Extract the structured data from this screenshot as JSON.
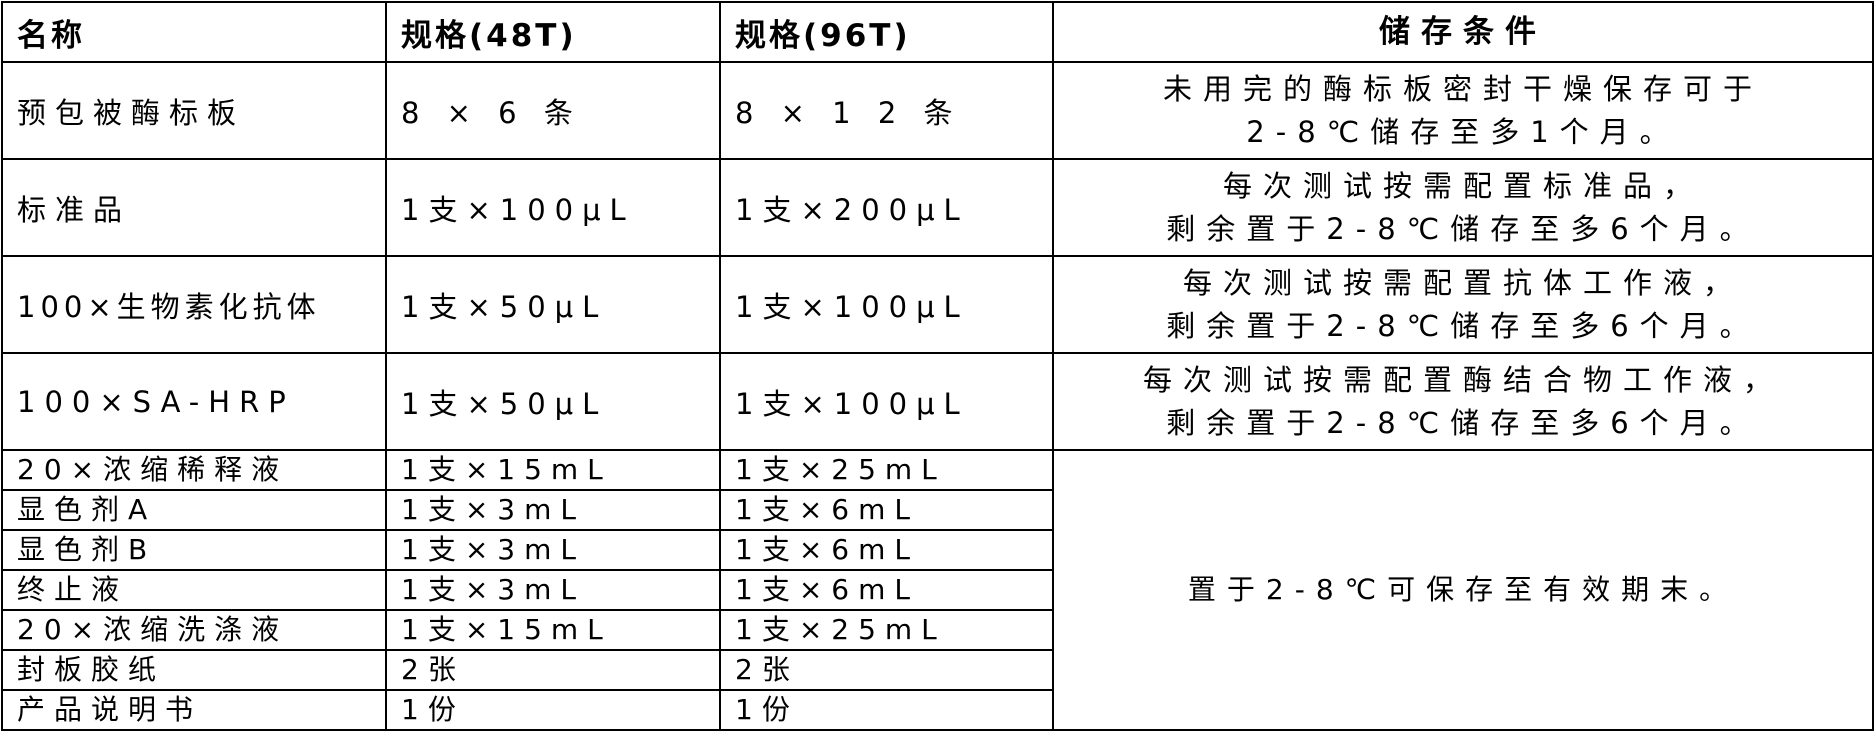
{
  "headers": [
    "名称",
    "规格(48T)",
    "规格(96T)",
    "储存条件"
  ],
  "rows": [
    {
      "name": "预包被酶标板",
      "spec48": "8 × 6 条",
      "spec96": "8 × 1 2 条",
      "cond1": "未用完的酶标板密封干燥保存可于",
      "cond2": "2-8℃储存至多1个月。"
    },
    {
      "name": "标准品",
      "spec48": "1支×100μL",
      "spec96": "1支×200μL",
      "cond1": "每次测试按需配置标准品，",
      "cond2": "剩余置于2-8℃储存至多6个月。"
    },
    {
      "name": "100×生物素化抗体",
      "spec48": "1支×50μL",
      "spec96": "1支×100μL",
      "cond1": "每次测试按需配置抗体工作液，",
      "cond2": "剩余置于2-8℃储存至多6个月。"
    },
    {
      "name": "100×SA-HRP",
      "spec48": "1支×50μL",
      "spec96": "1支×100μL",
      "cond1": "每次测试按需配置酶结合物工作液，",
      "cond2": "剩余置于2-8℃储存至多6个月。"
    },
    {
      "name": "20×浓缩稀释液",
      "spec48": "1支×15mL",
      "spec96": "1支×25mL"
    },
    {
      "name": "显色剂A",
      "spec48": "1支×3mL",
      "spec96": "1支×6mL"
    },
    {
      "name": "显色剂B",
      "spec48": "1支×3mL",
      "spec96": "1支×6mL"
    },
    {
      "name": "终止液",
      "spec48": "1支×3mL",
      "spec96": "1支×6mL"
    },
    {
      "name": "20×浓缩洗涤液",
      "spec48": "1支×15mL",
      "spec96": "1支×25mL"
    },
    {
      "name": "封板胶纸",
      "spec48": "2张",
      "spec96": "2张"
    },
    {
      "name": "产品说明书",
      "spec48": "1份",
      "spec96": "1份"
    }
  ],
  "merged_condition": "置于2-8℃可保存至有效期末。"
}
